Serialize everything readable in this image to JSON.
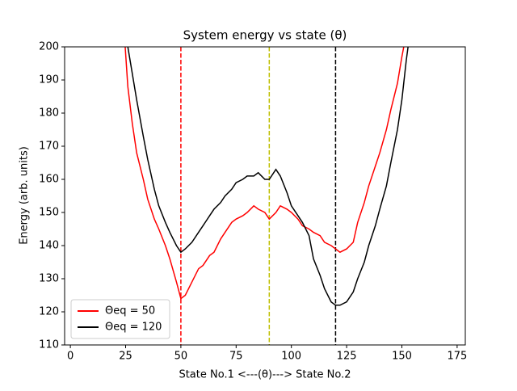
{
  "chart_data": {
    "type": "line",
    "title": "System energy vs state (θ)",
    "xlabel": "State No.1 <---(θ)---> State No.2",
    "ylabel": "Energy (arb. units)",
    "x": [
      24,
      26,
      28,
      30,
      33,
      35,
      38,
      40,
      43,
      45,
      48,
      50,
      52,
      55,
      58,
      60,
      63,
      65,
      68,
      70,
      73,
      75,
      78,
      80,
      83,
      85,
      88,
      90,
      93,
      95,
      98,
      100,
      103,
      105,
      108,
      110,
      113,
      115,
      118,
      120,
      122,
      125,
      128,
      130,
      133,
      135,
      138,
      140,
      143,
      145,
      148,
      150,
      152,
      154
    ],
    "series": [
      {
        "name": "Θeq = 50",
        "color": "#ff0000",
        "values": [
          208,
          188,
          177,
          168,
          160,
          154,
          148,
          145,
          140,
          136,
          129,
          124,
          125,
          129,
          133,
          134,
          137,
          138,
          142,
          144,
          147,
          148,
          149,
          150,
          152,
          151,
          150,
          148,
          150,
          152,
          151,
          150,
          148,
          146,
          145,
          144,
          143,
          141,
          140,
          139,
          138,
          139,
          141,
          147,
          153,
          158,
          164,
          168,
          175,
          181,
          189,
          197,
          204,
          210
        ]
      },
      {
        "name": "Θeq = 120",
        "color": "#000000",
        "values": [
          212,
          200,
          192,
          184,
          173,
          166,
          157,
          152,
          147,
          144,
          140,
          138,
          139,
          141,
          144,
          146,
          149,
          151,
          153,
          155,
          157,
          159,
          160,
          161,
          161,
          162,
          160,
          160,
          163,
          161,
          156,
          152,
          149,
          147,
          143,
          136,
          131,
          127,
          123,
          122,
          122,
          123,
          126,
          130,
          135,
          140,
          146,
          151,
          158,
          165,
          175,
          184,
          196,
          206
        ]
      }
    ],
    "vlines": [
      {
        "value": 50,
        "color": "#ff0000"
      },
      {
        "value": 90,
        "color": "#bfbf00"
      },
      {
        "value": 120,
        "color": "#000000"
      }
    ],
    "xlim": [
      -2.6,
      178.7
    ],
    "ylim": [
      110,
      200
    ],
    "xticks": [
      0,
      25,
      50,
      75,
      100,
      125,
      150,
      175
    ],
    "yticks": [
      110,
      120,
      130,
      140,
      150,
      160,
      170,
      180,
      190,
      200
    ],
    "legend": "lower left"
  }
}
